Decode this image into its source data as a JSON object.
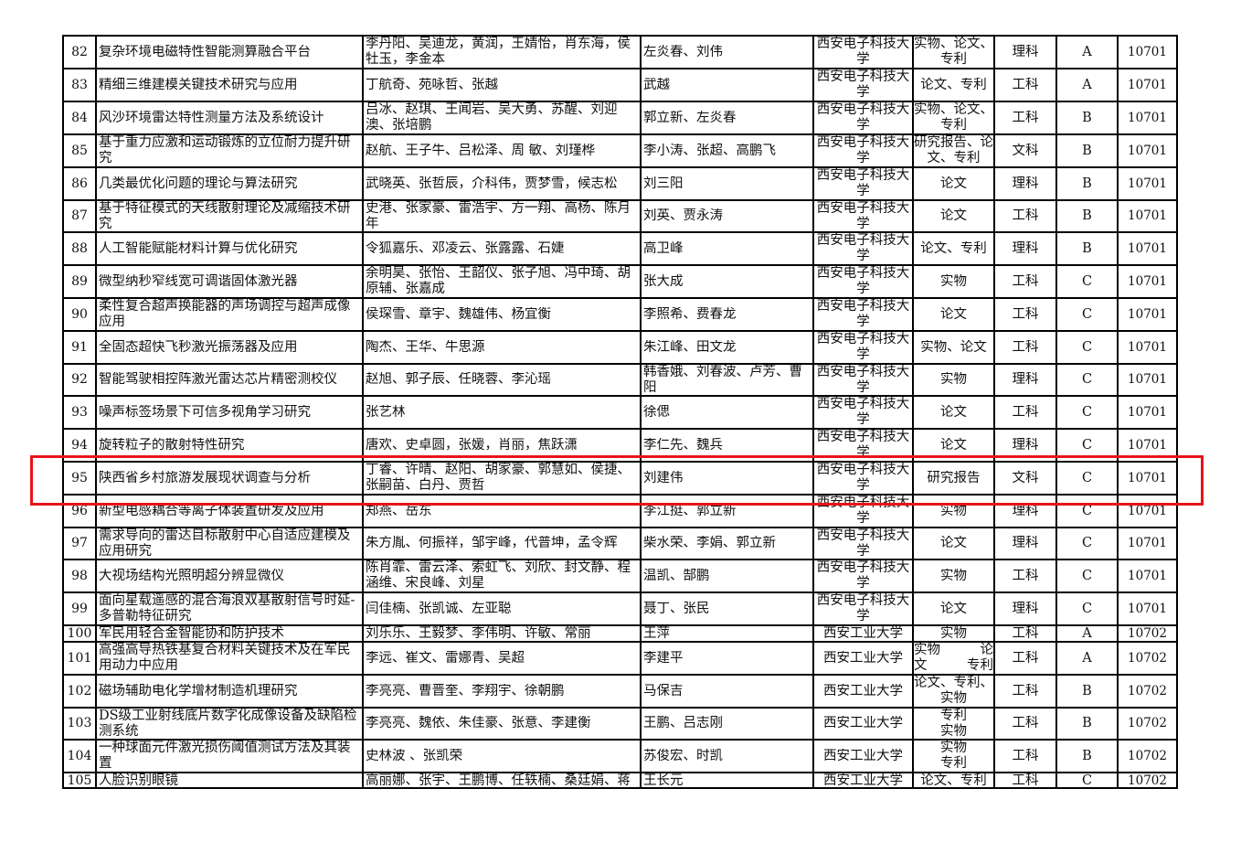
{
  "highlight_color": "#e8141b",
  "highlighted_row_no": "95",
  "rows": [
    {
      "no": "82",
      "name": "复杂环境电磁特性智能测算融合平台",
      "members": "李丹阳、吴迪龙，黄润，王婧怡，肖东海，侯牡玉，李金本",
      "leaders": "左炎春、刘伟",
      "unit": "西安电子科技大学",
      "outcome": "实物、论文、专利",
      "discipline": "理科",
      "grade": "A",
      "code": "10701"
    },
    {
      "no": "83",
      "name": "精细三维建模关键技术研究与应用",
      "members": "丁航奇、苑咏哲、张越",
      "leaders": "武越",
      "unit": "西安电子科技大学",
      "outcome": "论文、专利",
      "discipline": "工科",
      "grade": "A",
      "code": "10701"
    },
    {
      "no": "84",
      "name": "风沙环境雷达特性测量方法及系统设计",
      "members": "吕冰、赵琪、王闻岩、吴大勇、苏醒、刘迎澳、张培鹏",
      "leaders": "郭立新、左炎春",
      "unit": "西安电子科技大学",
      "outcome": "实物、论文、专利",
      "discipline": "工科",
      "grade": "B",
      "code": "10701"
    },
    {
      "no": "85",
      "name": "基于重力应激和运动锻炼的立位耐力提升研究",
      "members": "赵航、王子牛、吕松泽、周 敏、刘瑾桦",
      "leaders": "李小涛、张超、高鹏飞",
      "unit": "西安电子科技大学",
      "outcome": "研究报告、论文、专利",
      "discipline": "文科",
      "grade": "B",
      "code": "10701"
    },
    {
      "no": "86",
      "name": "几类最优化问题的理论与算法研究",
      "members": "武晓英、张哲辰，介科伟，贾梦雪，候志松",
      "leaders": "刘三阳",
      "unit": "西安电子科技大学",
      "outcome": "论文",
      "discipline": "理科",
      "grade": "B",
      "code": "10701"
    },
    {
      "no": "87",
      "name": "基于特征模式的天线散射理论及减缩技术研究",
      "members": "史港、张家豪、雷浩宇、方一翔、高杨、陈月年",
      "leaders": "刘英、贾永涛",
      "unit": "西安电子科技大学",
      "outcome": "论文",
      "discipline": "工科",
      "grade": "B",
      "code": "10701"
    },
    {
      "no": "88",
      "name": "人工智能赋能材料计算与优化研究",
      "members": "令狐嘉乐、邓凌云、张露露、石婕",
      "leaders": "高卫峰",
      "unit": "西安电子科技大学",
      "outcome": "论文、专利",
      "discipline": "理科",
      "grade": "B",
      "code": "10701"
    },
    {
      "no": "89",
      "name": "微型纳秒窄线宽可调谐固体激光器",
      "members": "余明昊、张怡、王韶仪、张子旭、冯中琦、胡原辅、张嘉成",
      "leaders": "张大成",
      "unit": "西安电子科技大学",
      "outcome": "实物",
      "discipline": "工科",
      "grade": "C",
      "code": "10701"
    },
    {
      "no": "90",
      "name": "柔性复合超声换能器的声场调控与超声成像应用",
      "members": "侯琛雪、章宇、魏雄伟、杨宜衡",
      "leaders": "李照希、费春龙",
      "unit": "西安电子科技大学",
      "outcome": "论文",
      "discipline": "工科",
      "grade": "C",
      "code": "10701"
    },
    {
      "no": "91",
      "name": "全固态超快飞秒激光振荡器及应用",
      "members": "陶杰、王华、牛思源",
      "leaders": "朱江峰、田文龙",
      "unit": "西安电子科技大学",
      "outcome": "实物、论文",
      "discipline": "工科",
      "grade": "C",
      "code": "10701"
    },
    {
      "no": "92",
      "name": "智能驾驶相控阵激光雷达芯片精密测校仪",
      "members": "赵旭、郭子辰、任晓蓉、李沁瑶",
      "leaders": "韩香娥、刘春波、卢芳、曹阳",
      "unit": "西安电子科技大学",
      "outcome": "实物",
      "discipline": "理科",
      "grade": "C",
      "code": "10701"
    },
    {
      "no": "93",
      "name": "噪声标签场景下可信多视角学习研究",
      "members": "张艺林",
      "leaders": "徐偲",
      "unit": "西安电子科技大学",
      "outcome": "论文",
      "discipline": "工科",
      "grade": "C",
      "code": "10701"
    },
    {
      "no": "94",
      "name": "旋转粒子的散射特性研究",
      "members": "唐欢、史卓圆，张媛，肖丽，焦跃潇",
      "leaders": "李仁先、魏兵",
      "unit": "西安电子科技大学",
      "outcome": "论文",
      "discipline": "理科",
      "grade": "C",
      "code": "10701"
    },
    {
      "no": "95",
      "name": "陕西省乡村旅游发展现状调查与分析",
      "members": "丁睿、许晴、赵阳、胡家豪、郭慧如、侯捷、张嗣苗、白丹、贾哲",
      "leaders": "刘建伟",
      "unit": "西安电子科技大学",
      "outcome": "研究报告",
      "discipline": "文科",
      "grade": "C",
      "code": "10701"
    },
    {
      "no": "96",
      "name": "新型电感耦合等离子体装置研发及应用",
      "members": "郑燕、岳东",
      "leaders": "李江挺、郭立新",
      "unit": "西安电子科技大学",
      "outcome": "实物",
      "discipline": "理科",
      "grade": "C",
      "code": "10701"
    },
    {
      "no": "97",
      "name": "需求导向的雷达目标散射中心自适应建模及应用研究",
      "members": "朱方胤、何振祥，邹宇峰，代普坤，孟令辉",
      "leaders": "柴水荣、李娟、郭立新",
      "unit": "西安电子科技大学",
      "outcome": "论文",
      "discipline": "理科",
      "grade": "C",
      "code": "10701"
    },
    {
      "no": "98",
      "name": "大视场结构光照明超分辨显微仪",
      "members": "陈肖霏、雷云泽、索虹飞、刘欣、封文静、程涵维、宋良峰、刘星",
      "leaders": "温凯、郜鹏",
      "unit": "西安电子科技大学",
      "outcome": "实物",
      "discipline": "工科",
      "grade": "C",
      "code": "10701"
    },
    {
      "no": "99",
      "name": "面向星载遥感的混合海浪双基散射信号时延-多普勒特征研究",
      "members": "闫佳楠、张凯诚、左亚聪",
      "leaders": "聂丁、张民",
      "unit": "西安电子科技大学",
      "outcome": "论文",
      "discipline": "理科",
      "grade": "C",
      "code": "10701"
    },
    {
      "no": "100",
      "name": "军民用轻合金智能协和防护技术",
      "members": "刘乐乐、王毅梦、李伟明、许敏、常丽",
      "leaders": "王萍",
      "unit": "西安工业大学",
      "outcome": "实物",
      "discipline": "工科",
      "grade": "A",
      "code": "10702"
    },
    {
      "no": "101",
      "name": "高强高导热铁基复合材料关键技术及在军民用动力中应用",
      "members": "李远、崔文、雷娜青、吴超",
      "leaders": "李建平",
      "unit": "西安工业大学",
      "outcome": "实物　　　论\n文　　　专利",
      "discipline": "工科",
      "grade": "A",
      "code": "10702"
    },
    {
      "no": "102",
      "name": "磁场辅助电化学增材制造机理研究",
      "members": "李亮亮、曹晋奎、李翔宇、徐朝鹏",
      "leaders": "马保吉",
      "unit": "西安工业大学",
      "outcome": "论文、专利、实物",
      "discipline": "工科",
      "grade": "B",
      "code": "10702"
    },
    {
      "no": "103",
      "name": "DS级工业射线底片数字化成像设备及缺陷检测系统",
      "members": "李亮亮、魏依、朱佳豪、张意、李建衡",
      "leaders": "王鹏、吕志刚",
      "unit": "西安工业大学",
      "outcome": "专利\n实物",
      "discipline": "工科",
      "grade": "B",
      "code": "10702"
    },
    {
      "no": "104",
      "name": "一种球面元件激光损伤阈值测试方法及其装置",
      "members": "史林波 、张凯荣",
      "leaders": "苏俊宏、时凯",
      "unit": "西安工业大学",
      "outcome": "实物\n专利",
      "discipline": "工科",
      "grade": "B",
      "code": "10702"
    },
    {
      "no": "105",
      "name": "人脸识别眼镜",
      "members": "高丽娜、张宇、王鹏博、任轶楠、桑廷娟、蒋",
      "leaders": "王长元",
      "unit": "西安工业大学",
      "outcome": "论文、专利",
      "discipline": "工科",
      "grade": "C",
      "code": "10702"
    }
  ]
}
